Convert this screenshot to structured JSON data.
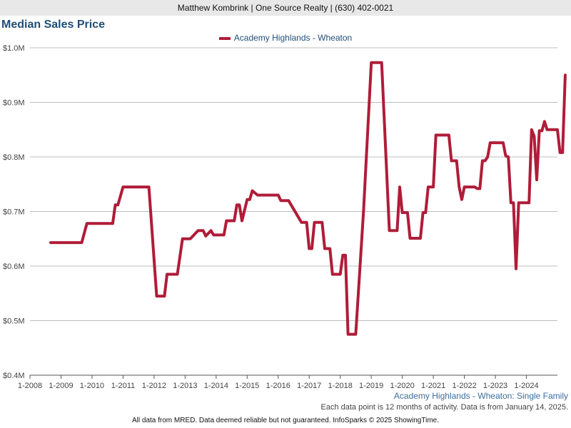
{
  "header": {
    "agent": "Matthew Kombrink | One Source Realty | (630) 402-0021"
  },
  "title": "Median Sales Price",
  "subtitle": "Academy Highlands - Wheaton: Single Family",
  "note": "Each data point is 12 months of activity. Data is from January 14, 2025.",
  "footer": "All data from MRED. Data deemed reliable but not guaranteed. InfoSparks © 2025 ShowingTime.",
  "colors": {
    "series": "#b01c38",
    "grid": "#bdbdbd",
    "title": "#1f4e79"
  },
  "chart_data": {
    "type": "line",
    "title": "Median Sales Price",
    "xlabel": "",
    "ylabel": "",
    "ylim": [
      400000,
      1000000
    ],
    "xlim": [
      "2008-01",
      "2025-01"
    ],
    "grid": true,
    "legend_position": "top-center",
    "x_ticks": [
      "1-2008",
      "1-2009",
      "1-2010",
      "1-2011",
      "1-2012",
      "1-2013",
      "1-2014",
      "1-2015",
      "1-2016",
      "1-2017",
      "1-2018",
      "1-2019",
      "1-2020",
      "1-2021",
      "1-2022",
      "1-2023",
      "1-2024"
    ],
    "y_ticks": [
      "$0.4M",
      "$0.5M",
      "$0.6M",
      "$0.7M",
      "$0.8M",
      "$0.9M",
      "$1.0M"
    ],
    "series": [
      {
        "name": "Academy Highlands - Wheaton",
        "color": "#b01c38",
        "points": [
          [
            "2008-09",
            643000
          ],
          [
            "2009-09",
            643000
          ],
          [
            "2009-11",
            678000
          ],
          [
            "2010-09",
            678000
          ],
          [
            "2010-10",
            712000
          ],
          [
            "2010-11",
            712000
          ],
          [
            "2011-01",
            745000
          ],
          [
            "2011-11",
            745000
          ],
          [
            "2012-02",
            545000
          ],
          [
            "2012-05",
            545000
          ],
          [
            "2012-06",
            585000
          ],
          [
            "2012-10",
            585000
          ],
          [
            "2012-12",
            650000
          ],
          [
            "2013-03",
            650000
          ],
          [
            "2013-06",
            665000
          ],
          [
            "2013-08",
            665000
          ],
          [
            "2013-09",
            655000
          ],
          [
            "2013-11",
            665000
          ],
          [
            "2013-12",
            657000
          ],
          [
            "2014-04",
            657000
          ],
          [
            "2014-05",
            683000
          ],
          [
            "2014-08",
            683000
          ],
          [
            "2014-09",
            712000
          ],
          [
            "2014-10",
            712000
          ],
          [
            "2014-11",
            683000
          ],
          [
            "2015-01",
            722000
          ],
          [
            "2015-02",
            722000
          ],
          [
            "2015-03",
            738000
          ],
          [
            "2015-05",
            730000
          ],
          [
            "2016-01",
            730000
          ],
          [
            "2016-02",
            720000
          ],
          [
            "2016-05",
            720000
          ],
          [
            "2016-10",
            680000
          ],
          [
            "2016-12",
            680000
          ],
          [
            "2017-01",
            632000
          ],
          [
            "2017-02",
            632000
          ],
          [
            "2017-03",
            680000
          ],
          [
            "2017-06",
            680000
          ],
          [
            "2017-07",
            632000
          ],
          [
            "2017-09",
            632000
          ],
          [
            "2017-10",
            585000
          ],
          [
            "2018-01",
            585000
          ],
          [
            "2018-02",
            620000
          ],
          [
            "2018-03",
            620000
          ],
          [
            "2018-04",
            475000
          ],
          [
            "2018-07",
            475000
          ],
          [
            "2018-10",
            700000
          ],
          [
            "2019-01",
            973000
          ],
          [
            "2019-05",
            973000
          ],
          [
            "2019-08",
            665000
          ],
          [
            "2019-11",
            665000
          ],
          [
            "2019-12",
            745000
          ],
          [
            "2020-01",
            698000
          ],
          [
            "2020-03",
            698000
          ],
          [
            "2020-04",
            651000
          ],
          [
            "2020-08",
            651000
          ],
          [
            "2020-09",
            698000
          ],
          [
            "2020-10",
            698000
          ],
          [
            "2020-11",
            745000
          ],
          [
            "2021-01",
            745000
          ],
          [
            "2021-02",
            840000
          ],
          [
            "2021-07",
            840000
          ],
          [
            "2021-08",
            793000
          ],
          [
            "2021-10",
            793000
          ],
          [
            "2021-11",
            745000
          ],
          [
            "2021-12",
            722000
          ],
          [
            "2022-01",
            745000
          ],
          [
            "2022-05",
            745000
          ],
          [
            "2022-06",
            742000
          ],
          [
            "2022-07",
            742000
          ],
          [
            "2022-08",
            793000
          ],
          [
            "2022-09",
            793000
          ],
          [
            "2022-10",
            800000
          ],
          [
            "2022-11",
            826000
          ],
          [
            "2023-04",
            826000
          ],
          [
            "2023-05",
            802000
          ],
          [
            "2023-06",
            800000
          ],
          [
            "2023-07",
            716000
          ],
          [
            "2023-08",
            716000
          ],
          [
            "2023-09",
            595000
          ],
          [
            "2023-10",
            716000
          ],
          [
            "2024-02",
            716000
          ],
          [
            "2024-03",
            850000
          ],
          [
            "2024-04",
            838000
          ],
          [
            "2024-05",
            758000
          ],
          [
            "2024-06",
            848000
          ],
          [
            "2024-07",
            848000
          ],
          [
            "2024-08",
            865000
          ],
          [
            "2024-09",
            850000
          ],
          [
            "2025-01",
            850000
          ],
          [
            "2025-02",
            808000
          ],
          [
            "2025-03",
            808000
          ],
          [
            "2025-04",
            950000
          ]
        ]
      }
    ]
  }
}
